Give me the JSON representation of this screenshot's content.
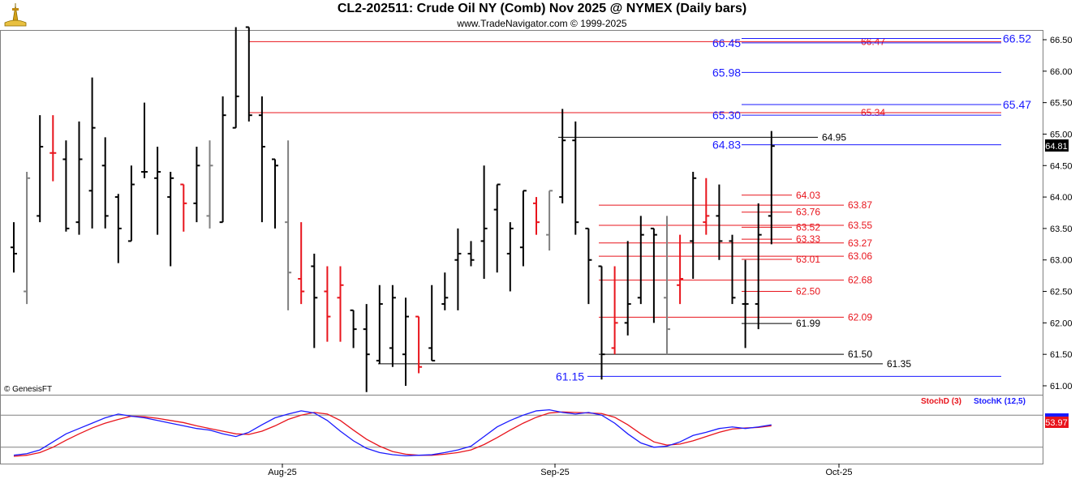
{
  "header": {
    "title": "CL2-202511:  Crude Oil NY (Comb) Nov 2025 @ NYMEX  (Daily bars)",
    "subtitle": "www.TradeNavigator.com © 1999-2025",
    "copyright": "© GenesisFT",
    "logo_icon": "lighthouse-logo-icon"
  },
  "colors": {
    "blue": "#1a1aff",
    "red": "#e8141c",
    "black": "#000000",
    "gray": "#808080",
    "green": "#22cc22",
    "grid": "#c8c8c8"
  },
  "chart_data": {
    "type": "ohlc",
    "ylim": [
      60.9,
      66.6
    ],
    "y_ticks": [
      "66.50",
      "66.00",
      "65.50",
      "65.00",
      "64.50",
      "64.00",
      "63.50",
      "63.00",
      "62.50",
      "62.00",
      "61.50",
      "61.00"
    ],
    "x_tick_labels": [
      "Aug-25",
      "Sep-25",
      "Oct-25"
    ],
    "last_price_label": "64.81",
    "bars": [
      {
        "o": 63.2,
        "h": 63.6,
        "l": 62.8,
        "c": 63.1,
        "col": "black"
      },
      {
        "o": 62.5,
        "h": 64.4,
        "l": 62.3,
        "c": 64.3,
        "col": "gray"
      },
      {
        "o": 63.7,
        "h": 65.3,
        "l": 63.6,
        "c": 64.8,
        "col": "black"
      },
      {
        "o": 64.7,
        "h": 65.3,
        "l": 64.25,
        "c": 64.7,
        "col": "red"
      },
      {
        "o": 64.6,
        "h": 64.9,
        "l": 63.45,
        "c": 63.5,
        "col": "black"
      },
      {
        "o": 63.6,
        "h": 65.2,
        "l": 63.4,
        "c": 64.6,
        "col": "black"
      },
      {
        "o": 64.1,
        "h": 65.9,
        "l": 63.5,
        "c": 65.1,
        "col": "black"
      },
      {
        "o": 64.5,
        "h": 64.95,
        "l": 63.5,
        "c": 63.7,
        "col": "black"
      },
      {
        "o": 64.0,
        "h": 64.05,
        "l": 62.95,
        "c": 63.5,
        "col": "black"
      },
      {
        "o": 63.3,
        "h": 64.5,
        "l": 63.3,
        "c": 64.2,
        "col": "black"
      },
      {
        "o": 64.4,
        "h": 65.5,
        "l": 64.3,
        "c": 64.4,
        "col": "black"
      },
      {
        "o": 64.3,
        "h": 64.8,
        "l": 63.4,
        "c": 64.4,
        "col": "black"
      },
      {
        "o": 64.0,
        "h": 64.4,
        "l": 62.9,
        "c": 64.3,
        "col": "black"
      },
      {
        "o": 64.2,
        "h": 64.2,
        "l": 63.45,
        "c": 63.9,
        "col": "red"
      },
      {
        "o": 63.9,
        "h": 64.8,
        "l": 63.6,
        "c": 64.5,
        "col": "black"
      },
      {
        "o": 63.7,
        "h": 64.9,
        "l": 63.5,
        "c": 64.5,
        "col": "gray"
      },
      {
        "o": 63.6,
        "h": 65.6,
        "l": 63.6,
        "c": 65.3,
        "col": "black"
      },
      {
        "o": 65.1,
        "h": 66.7,
        "l": 65.1,
        "c": 65.6,
        "col": "black"
      },
      {
        "o": 66.7,
        "h": 66.7,
        "l": 65.2,
        "c": 65.3,
        "col": "black"
      },
      {
        "o": 65.3,
        "h": 65.6,
        "l": 63.6,
        "c": 64.8,
        "col": "black"
      },
      {
        "o": 64.6,
        "h": 64.6,
        "l": 63.5,
        "c": 64.5,
        "col": "black"
      },
      {
        "o": 63.6,
        "h": 64.9,
        "l": 62.2,
        "c": 62.8,
        "col": "gray"
      },
      {
        "o": 62.7,
        "h": 63.6,
        "l": 62.3,
        "c": 62.5,
        "col": "red"
      },
      {
        "o": 62.9,
        "h": 63.1,
        "l": 61.6,
        "c": 62.4,
        "col": "black"
      },
      {
        "o": 62.5,
        "h": 62.9,
        "l": 61.7,
        "c": 62.1,
        "col": "red"
      },
      {
        "o": 62.4,
        "h": 62.9,
        "l": 61.7,
        "c": 62.6,
        "col": "red"
      },
      {
        "o": 62.2,
        "h": 62.2,
        "l": 61.6,
        "c": 61.9,
        "col": "black"
      },
      {
        "o": 61.9,
        "h": 62.3,
        "l": 60.9,
        "c": 61.5,
        "col": "black"
      },
      {
        "o": 61.4,
        "h": 62.6,
        "l": 61.35,
        "c": 62.3,
        "col": "black"
      },
      {
        "o": 61.6,
        "h": 62.6,
        "l": 61.3,
        "c": 62.4,
        "col": "black"
      },
      {
        "o": 61.5,
        "h": 62.4,
        "l": 61.0,
        "c": 62.1,
        "col": "black"
      },
      {
        "o": 62.1,
        "h": 62.1,
        "l": 61.2,
        "c": 61.3,
        "col": "red"
      },
      {
        "o": 61.6,
        "h": 62.6,
        "l": 61.4,
        "c": 61.4,
        "col": "black"
      },
      {
        "o": 62.3,
        "h": 62.8,
        "l": 62.2,
        "c": 62.4,
        "col": "black"
      },
      {
        "o": 63.0,
        "h": 63.5,
        "l": 62.2,
        "c": 63.1,
        "col": "black"
      },
      {
        "o": 63.1,
        "h": 63.3,
        "l": 62.9,
        "c": 63.0,
        "col": "black"
      },
      {
        "o": 63.3,
        "h": 64.5,
        "l": 62.7,
        "c": 63.5,
        "col": "black"
      },
      {
        "o": 63.8,
        "h": 64.2,
        "l": 62.8,
        "c": 64.2,
        "col": "black"
      },
      {
        "o": 63.1,
        "h": 63.6,
        "l": 62.5,
        "c": 63.5,
        "col": "black"
      },
      {
        "o": 63.2,
        "h": 64.1,
        "l": 62.9,
        "c": 64.1,
        "col": "black"
      },
      {
        "o": 63.9,
        "h": 64.0,
        "l": 63.4,
        "c": 63.6,
        "col": "red"
      },
      {
        "o": 63.4,
        "h": 64.1,
        "l": 63.15,
        "c": 64.1,
        "col": "gray"
      },
      {
        "o": 64.0,
        "h": 65.4,
        "l": 63.9,
        "c": 64.9,
        "col": "black"
      },
      {
        "o": 64.9,
        "h": 65.2,
        "l": 63.4,
        "c": 63.6,
        "col": "black"
      },
      {
        "o": 63.5,
        "h": 63.5,
        "l": 62.3,
        "c": 63.0,
        "col": "black"
      },
      {
        "o": 62.9,
        "h": 62.9,
        "l": 61.1,
        "c": 61.5,
        "col": "black"
      },
      {
        "o": 61.6,
        "h": 62.9,
        "l": 61.5,
        "c": 62.0,
        "col": "red"
      },
      {
        "o": 62.0,
        "h": 63.3,
        "l": 61.8,
        "c": 62.3,
        "col": "black"
      },
      {
        "o": 62.4,
        "h": 63.7,
        "l": 62.3,
        "c": 63.4,
        "col": "black"
      },
      {
        "o": 63.5,
        "h": 63.5,
        "l": 62.0,
        "c": 63.4,
        "col": "black"
      },
      {
        "o": 62.4,
        "h": 63.7,
        "l": 61.5,
        "c": 61.9,
        "col": "gray"
      },
      {
        "o": 62.6,
        "h": 63.4,
        "l": 62.3,
        "c": 62.7,
        "col": "red"
      },
      {
        "o": 63.3,
        "h": 64.4,
        "l": 62.7,
        "c": 64.3,
        "col": "black"
      },
      {
        "o": 63.6,
        "h": 64.3,
        "l": 63.4,
        "c": 63.7,
        "col": "red"
      },
      {
        "o": 63.7,
        "h": 64.2,
        "l": 63.0,
        "c": 63.3,
        "col": "black"
      },
      {
        "o": 63.3,
        "h": 63.4,
        "l": 62.3,
        "c": 62.4,
        "col": "black"
      },
      {
        "o": 62.3,
        "h": 63.0,
        "l": 61.6,
        "c": 62.3,
        "col": "black"
      },
      {
        "o": 62.3,
        "h": 63.9,
        "l": 61.9,
        "c": 63.4,
        "col": "black"
      },
      {
        "o": 63.7,
        "h": 65.05,
        "l": 63.25,
        "c": 64.81,
        "col": "black"
      }
    ],
    "levels": [
      {
        "y": 66.47,
        "label": "66.47",
        "color": "red",
        "side": "left-line"
      },
      {
        "y": 66.45,
        "label": "66.45",
        "color": "blue",
        "kind": "mid"
      },
      {
        "y": 66.52,
        "label": "66.52",
        "color": "blue",
        "kind": "right"
      },
      {
        "y": 65.98,
        "label": "65.98",
        "color": "blue",
        "kind": "mid"
      },
      {
        "y": 65.47,
        "label": "65.47",
        "color": "blue",
        "kind": "right"
      },
      {
        "y": 65.34,
        "label": "65.34",
        "color": "red",
        "side": "left-line"
      },
      {
        "y": 65.3,
        "label": "65.30",
        "color": "blue",
        "kind": "mid"
      },
      {
        "y": 64.95,
        "label": "64.95",
        "color": "black",
        "kind": "short"
      },
      {
        "y": 64.83,
        "label": "64.83",
        "color": "blue",
        "kind": "mid"
      },
      {
        "y": 64.03,
        "label": "64.03",
        "color": "red",
        "kind": "short"
      },
      {
        "y": 63.87,
        "label": "63.87",
        "color": "red",
        "kind": "longer"
      },
      {
        "y": 63.76,
        "label": "63.76",
        "color": "red",
        "kind": "short"
      },
      {
        "y": 63.55,
        "label": "63.55",
        "color": "red",
        "kind": "longer"
      },
      {
        "y": 63.52,
        "label": "63.52",
        "color": "red",
        "kind": "short"
      },
      {
        "y": 63.33,
        "label": "63.33",
        "color": "red",
        "kind": "short"
      },
      {
        "y": 63.27,
        "label": "63.27",
        "color": "red",
        "kind": "longer"
      },
      {
        "y": 63.06,
        "label": "63.06",
        "color": "red",
        "kind": "longer"
      },
      {
        "y": 63.01,
        "label": "63.01",
        "color": "red",
        "kind": "short"
      },
      {
        "y": 62.68,
        "label": "62.68",
        "color": "red",
        "kind": "longer"
      },
      {
        "y": 62.5,
        "label": "62.50",
        "color": "red",
        "kind": "short"
      },
      {
        "y": 62.09,
        "label": "62.09",
        "color": "red",
        "kind": "longer"
      },
      {
        "y": 61.99,
        "label": "61.99",
        "color": "black",
        "kind": "short"
      },
      {
        "y": 61.5,
        "label": "61.50",
        "color": "black",
        "kind": "longer"
      },
      {
        "y": 61.35,
        "label": "61.35",
        "color": "black",
        "kind": "longest"
      },
      {
        "y": 61.15,
        "label": "61.15",
        "color": "blue",
        "kind": "low"
      }
    ],
    "stochastic": {
      "legend_d": "StochD (3)",
      "legend_k": "StochK (12,5)",
      "value_label": "53.97",
      "ylim": [
        0,
        100
      ],
      "k": [
        5,
        8,
        15,
        30,
        45,
        55,
        65,
        75,
        82,
        78,
        75,
        70,
        65,
        60,
        55,
        52,
        45,
        40,
        48,
        62,
        75,
        82,
        88,
        84,
        70,
        50,
        32,
        18,
        10,
        6,
        4,
        5,
        6,
        10,
        15,
        22,
        40,
        58,
        70,
        80,
        88,
        90,
        85,
        82,
        85,
        80,
        65,
        45,
        28,
        20,
        22,
        30,
        42,
        48,
        55,
        58,
        55,
        58,
        62
      ],
      "d": [
        3,
        5,
        10,
        20,
        33,
        45,
        56,
        65,
        72,
        78,
        77,
        74,
        70,
        66,
        60,
        55,
        50,
        45,
        44,
        50,
        60,
        72,
        80,
        85,
        82,
        70,
        52,
        35,
        22,
        12,
        7,
        5,
        5,
        7,
        10,
        15,
        25,
        38,
        52,
        65,
        76,
        84,
        86,
        85,
        84,
        83,
        76,
        62,
        45,
        30,
        24,
        26,
        32,
        40,
        48,
        54,
        56,
        57,
        60
      ]
    }
  }
}
